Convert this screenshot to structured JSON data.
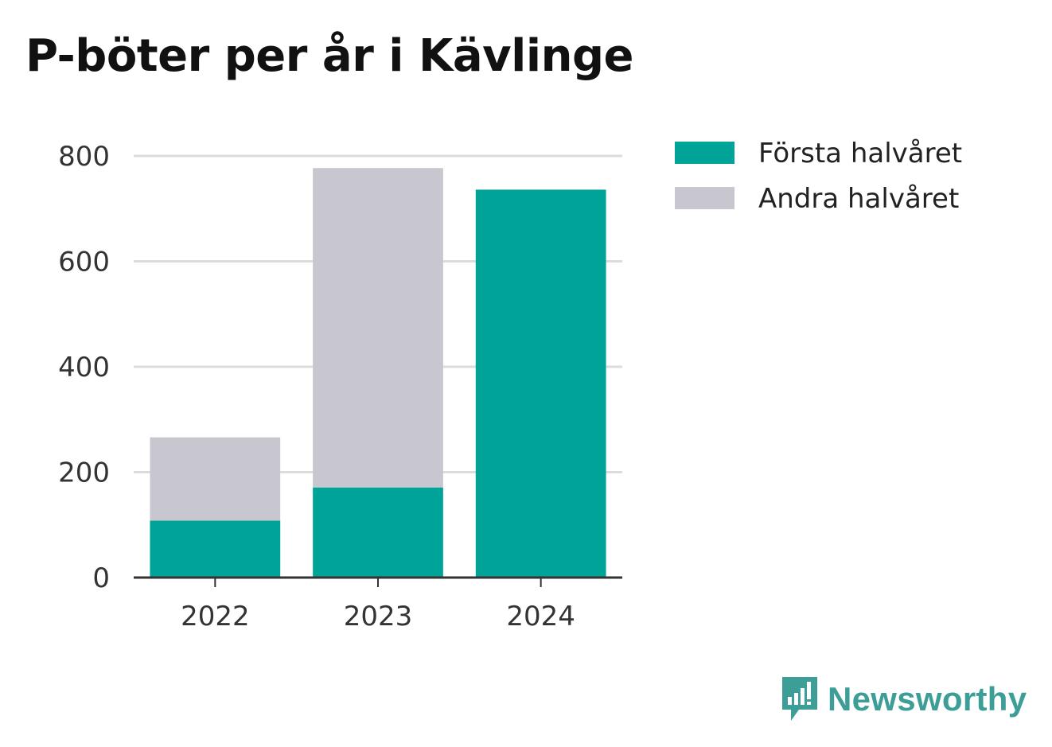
{
  "chart_data": {
    "type": "bar",
    "stacked": true,
    "title": "P-böter per år i Kävlinge",
    "xlabel": "",
    "ylabel": "",
    "categories": [
      "2022",
      "2023",
      "2024"
    ],
    "series": [
      {
        "name": "Första halvåret",
        "color": "#00a398",
        "values": [
          108,
          171,
          736
        ]
      },
      {
        "name": "Andra halvåret",
        "color": "#c8c7cf",
        "values": [
          158,
          606,
          0
        ]
      }
    ],
    "ylim": [
      0,
      800
    ],
    "yticks": [
      0,
      200,
      400,
      600,
      800
    ],
    "grid": true,
    "legend_position": "right-top"
  },
  "brand": {
    "name": "Newsworthy",
    "icon": "newsworthy-logo-icon"
  }
}
